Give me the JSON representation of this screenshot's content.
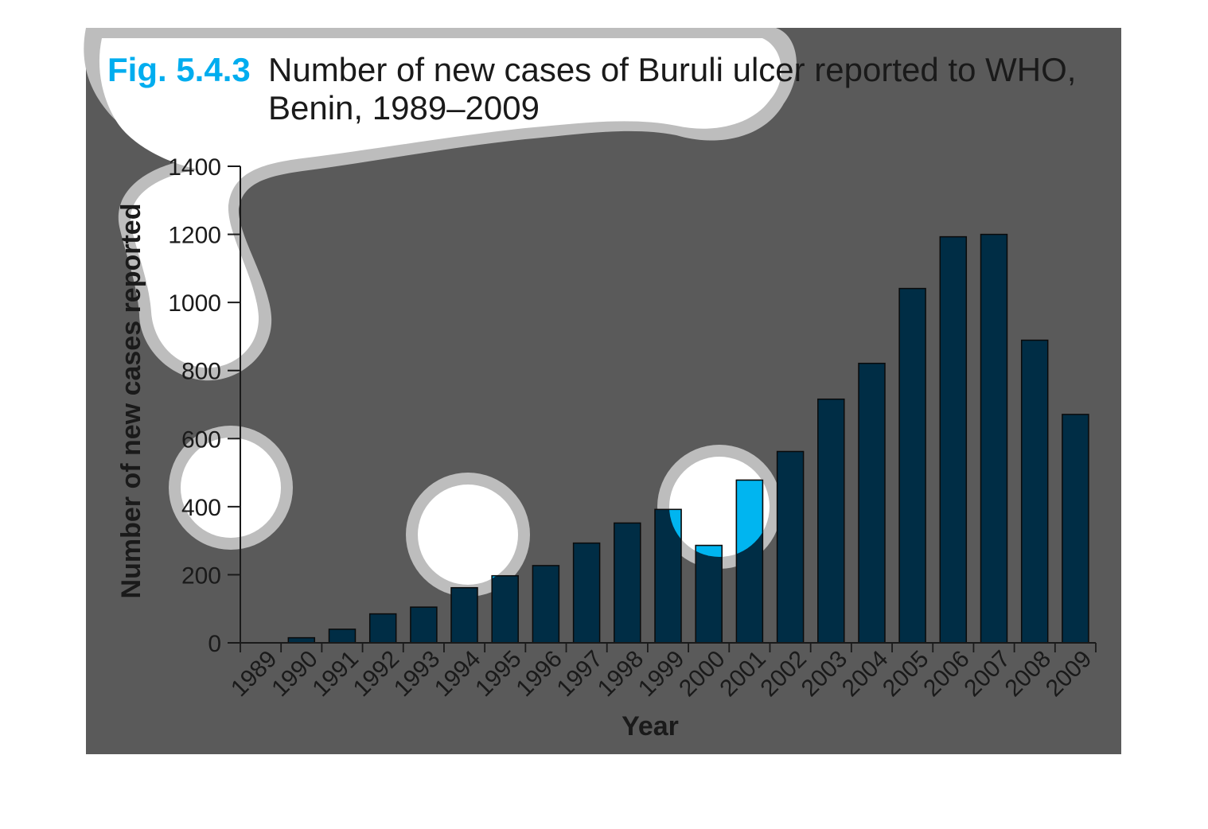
{
  "figure": {
    "label": "Fig. 5.4.3",
    "title_line1": "Number of new cases of Buruli ulcer reported to WHO,",
    "title_line2": "Benin, 1989–2009"
  },
  "colors": {
    "panel": "#5a5a5a",
    "bar": "#002d45",
    "bar_highlight": "#00b5f0",
    "label_accent": "#00adef",
    "axis": "#1a1a1a",
    "blob_fill": "#ffffff",
    "blob_ring": "#bdbdbd"
  },
  "chart_data": {
    "type": "bar",
    "xlabel": "Year",
    "ylabel": "Number of new cases reported",
    "ylim": [
      0,
      1400
    ],
    "yticks": [
      0,
      200,
      400,
      600,
      800,
      1000,
      1200,
      1400
    ],
    "grid": false,
    "categories": [
      "1989",
      "1990",
      "1991",
      "1992",
      "1993",
      "1994",
      "1995",
      "1996",
      "1997",
      "1998",
      "1999",
      "2000",
      "2001",
      "2002",
      "2003",
      "2004",
      "2005",
      "2006",
      "2007",
      "2008",
      "2009"
    ],
    "values": [
      0,
      15,
      40,
      85,
      105,
      162,
      197,
      227,
      293,
      352,
      392,
      286,
      478,
      562,
      716,
      821,
      1041,
      1193,
      1200,
      889,
      671
    ]
  }
}
